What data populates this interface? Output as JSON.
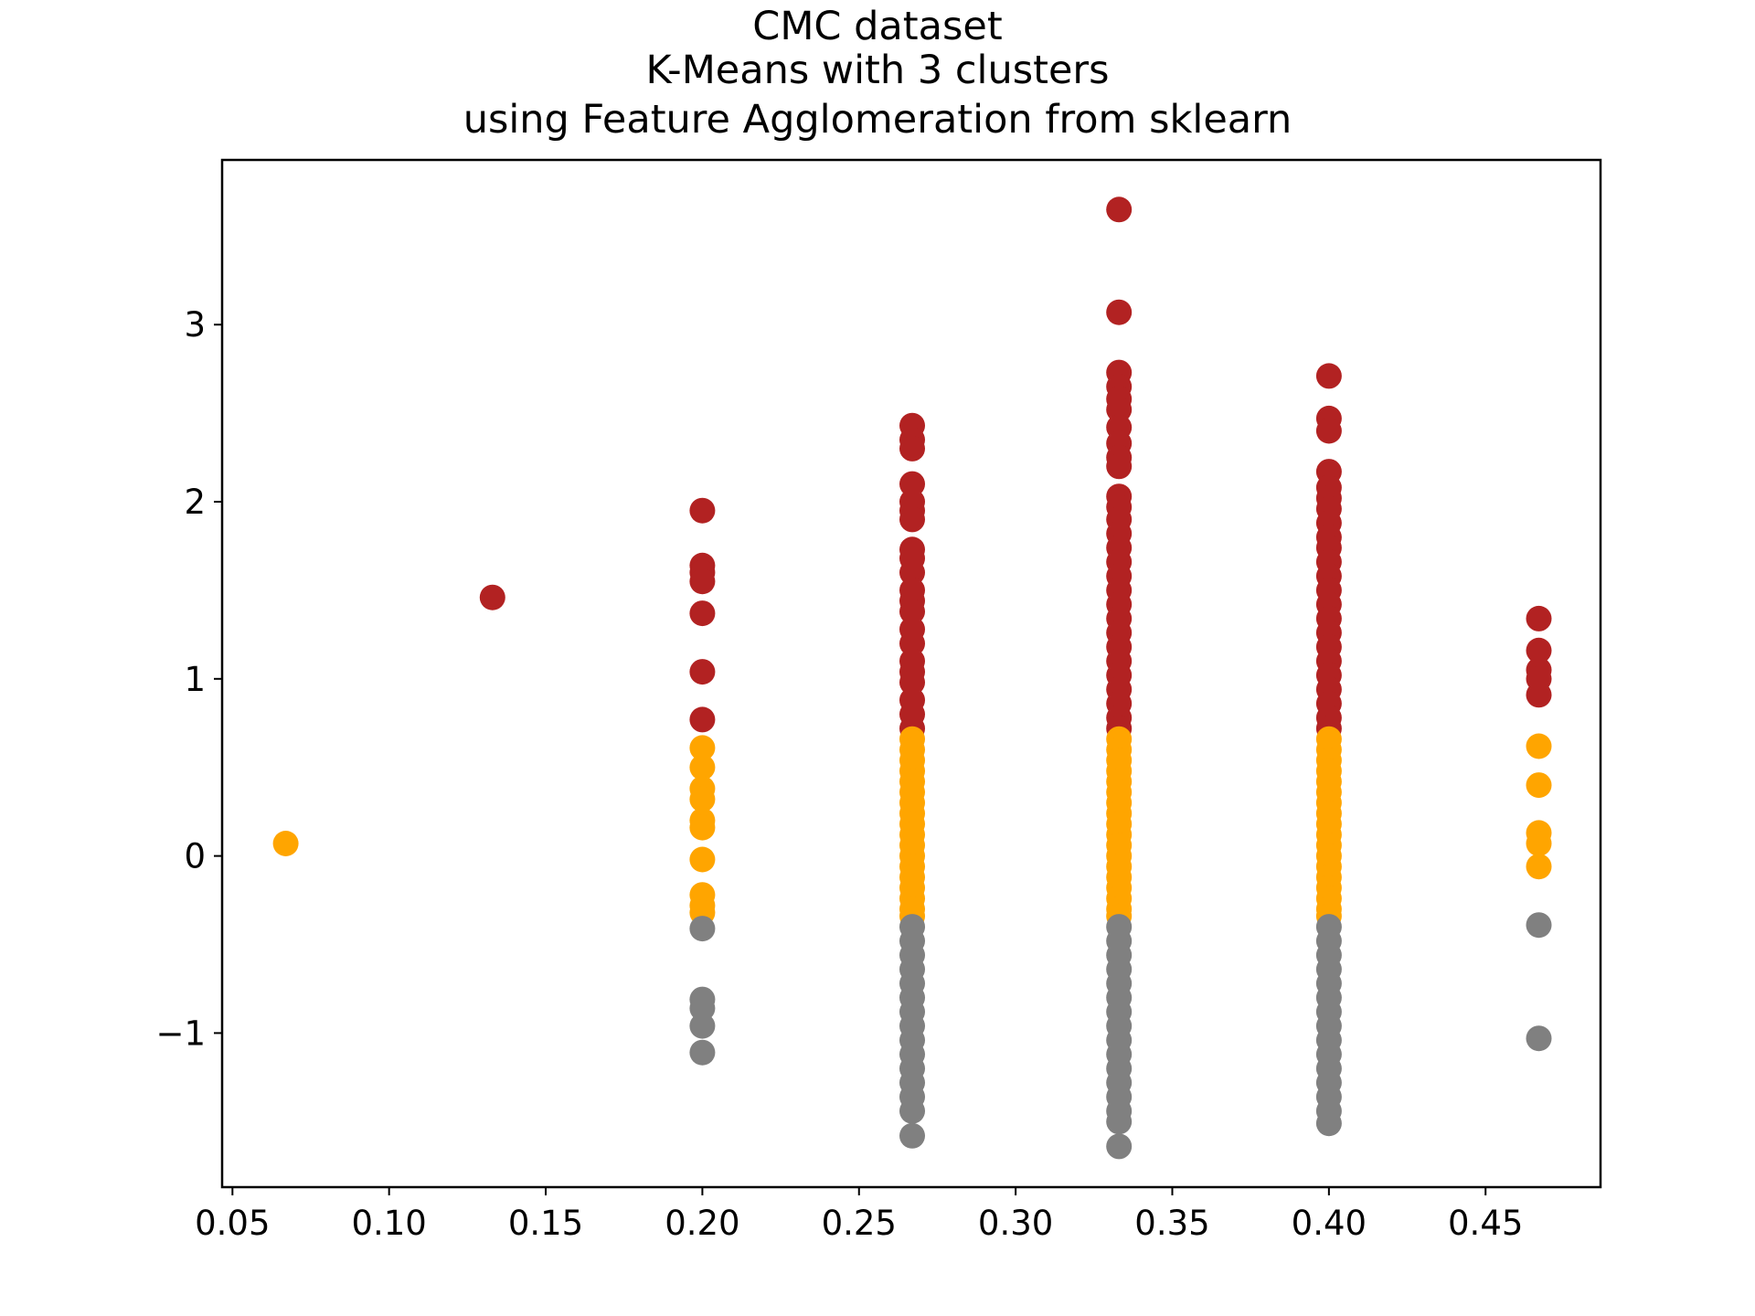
{
  "chart_data": {
    "type": "scatter",
    "title_lines": [
      "CMC dataset",
      "K-Means with 3 clusters",
      "using Feature Agglomeration from sklearn"
    ],
    "xlabel": "",
    "ylabel": "",
    "xlim": [
      0.0467,
      0.4867
    ],
    "ylim": [
      -1.87,
      3.93
    ],
    "x_ticks": [
      0.05,
      0.1,
      0.15,
      0.2,
      0.25,
      0.3,
      0.35,
      0.4,
      0.45
    ],
    "x_tick_labels": [
      "0.05",
      "0.10",
      "0.15",
      "0.20",
      "0.25",
      "0.30",
      "0.35",
      "0.40",
      "0.45"
    ],
    "y_ticks": [
      -1,
      0,
      1,
      2,
      3
    ],
    "y_tick_labels": [
      "−1",
      "0",
      "1",
      "2",
      "3"
    ],
    "grid": false,
    "colors": {
      "cluster_high": "#b22222",
      "cluster_mid": "#ffa500",
      "cluster_low": "#808080"
    },
    "series": [
      {
        "color": "#b22222",
        "points": [
          [
            0.133,
            1.46
          ],
          [
            0.2,
            1.95
          ],
          [
            0.2,
            1.64
          ],
          [
            0.2,
            1.6
          ],
          [
            0.2,
            1.55
          ],
          [
            0.2,
            1.37
          ],
          [
            0.2,
            1.04
          ],
          [
            0.2,
            0.77
          ],
          [
            0.267,
            2.43
          ],
          [
            0.267,
            2.35
          ],
          [
            0.267,
            2.3
          ],
          [
            0.267,
            2.1
          ],
          [
            0.267,
            2.0
          ],
          [
            0.267,
            1.95
          ],
          [
            0.267,
            1.9
          ],
          [
            0.267,
            1.73
          ],
          [
            0.267,
            1.68
          ],
          [
            0.267,
            1.6
          ],
          [
            0.267,
            1.5
          ],
          [
            0.267,
            1.44
          ],
          [
            0.267,
            1.38
          ],
          [
            0.267,
            1.28
          ],
          [
            0.267,
            1.2
          ],
          [
            0.267,
            1.1
          ],
          [
            0.267,
            1.04
          ],
          [
            0.267,
            0.98
          ],
          [
            0.267,
            0.88
          ],
          [
            0.267,
            0.8
          ],
          [
            0.267,
            0.72
          ],
          [
            0.333,
            3.65
          ],
          [
            0.333,
            3.07
          ],
          [
            0.333,
            2.73
          ],
          [
            0.333,
            2.65
          ],
          [
            0.333,
            2.58
          ],
          [
            0.333,
            2.52
          ],
          [
            0.333,
            2.42
          ],
          [
            0.333,
            2.33
          ],
          [
            0.333,
            2.25
          ],
          [
            0.333,
            2.2
          ],
          [
            0.333,
            2.03
          ],
          [
            0.333,
            1.97
          ],
          [
            0.333,
            1.9
          ],
          [
            0.333,
            1.82
          ],
          [
            0.333,
            1.74
          ],
          [
            0.333,
            1.66
          ],
          [
            0.333,
            1.58
          ],
          [
            0.333,
            1.5
          ],
          [
            0.333,
            1.42
          ],
          [
            0.333,
            1.34
          ],
          [
            0.333,
            1.26
          ],
          [
            0.333,
            1.18
          ],
          [
            0.333,
            1.1
          ],
          [
            0.333,
            1.02
          ],
          [
            0.333,
            0.94
          ],
          [
            0.333,
            0.86
          ],
          [
            0.333,
            0.78
          ],
          [
            0.333,
            0.72
          ],
          [
            0.4,
            2.71
          ],
          [
            0.4,
            2.47
          ],
          [
            0.4,
            2.4
          ],
          [
            0.4,
            2.17
          ],
          [
            0.4,
            2.08
          ],
          [
            0.4,
            2.02
          ],
          [
            0.4,
            1.96
          ],
          [
            0.4,
            1.88
          ],
          [
            0.4,
            1.8
          ],
          [
            0.4,
            1.74
          ],
          [
            0.4,
            1.66
          ],
          [
            0.4,
            1.58
          ],
          [
            0.4,
            1.5
          ],
          [
            0.4,
            1.42
          ],
          [
            0.4,
            1.34
          ],
          [
            0.4,
            1.26
          ],
          [
            0.4,
            1.18
          ],
          [
            0.4,
            1.1
          ],
          [
            0.4,
            1.02
          ],
          [
            0.4,
            0.94
          ],
          [
            0.4,
            0.86
          ],
          [
            0.4,
            0.78
          ],
          [
            0.4,
            0.72
          ],
          [
            0.467,
            1.34
          ],
          [
            0.467,
            1.16
          ],
          [
            0.467,
            1.05
          ],
          [
            0.467,
            1.0
          ],
          [
            0.467,
            0.91
          ]
        ]
      },
      {
        "color": "#ffa500",
        "points": [
          [
            0.067,
            0.07
          ],
          [
            0.2,
            0.61
          ],
          [
            0.2,
            0.5
          ],
          [
            0.2,
            0.38
          ],
          [
            0.2,
            0.32
          ],
          [
            0.2,
            0.2
          ],
          [
            0.2,
            0.16
          ],
          [
            0.2,
            -0.02
          ],
          [
            0.2,
            -0.22
          ],
          [
            0.2,
            -0.28
          ],
          [
            0.2,
            -0.32
          ],
          [
            0.267,
            0.66
          ],
          [
            0.267,
            0.6
          ],
          [
            0.267,
            0.54
          ],
          [
            0.267,
            0.48
          ],
          [
            0.267,
            0.42
          ],
          [
            0.267,
            0.36
          ],
          [
            0.267,
            0.3
          ],
          [
            0.267,
            0.24
          ],
          [
            0.267,
            0.18
          ],
          [
            0.267,
            0.12
          ],
          [
            0.267,
            0.06
          ],
          [
            0.267,
            0.0
          ],
          [
            0.267,
            -0.06
          ],
          [
            0.267,
            -0.12
          ],
          [
            0.267,
            -0.18
          ],
          [
            0.267,
            -0.24
          ],
          [
            0.267,
            -0.3
          ],
          [
            0.267,
            -0.34
          ],
          [
            0.333,
            0.66
          ],
          [
            0.333,
            0.6
          ],
          [
            0.333,
            0.54
          ],
          [
            0.333,
            0.48
          ],
          [
            0.333,
            0.42
          ],
          [
            0.333,
            0.36
          ],
          [
            0.333,
            0.3
          ],
          [
            0.333,
            0.24
          ],
          [
            0.333,
            0.18
          ],
          [
            0.333,
            0.12
          ],
          [
            0.333,
            0.06
          ],
          [
            0.333,
            0.0
          ],
          [
            0.333,
            -0.06
          ],
          [
            0.333,
            -0.12
          ],
          [
            0.333,
            -0.18
          ],
          [
            0.333,
            -0.24
          ],
          [
            0.333,
            -0.3
          ],
          [
            0.333,
            -0.34
          ],
          [
            0.4,
            0.66
          ],
          [
            0.4,
            0.6
          ],
          [
            0.4,
            0.54
          ],
          [
            0.4,
            0.48
          ],
          [
            0.4,
            0.42
          ],
          [
            0.4,
            0.36
          ],
          [
            0.4,
            0.3
          ],
          [
            0.4,
            0.24
          ],
          [
            0.4,
            0.18
          ],
          [
            0.4,
            0.12
          ],
          [
            0.4,
            0.06
          ],
          [
            0.4,
            0.0
          ],
          [
            0.4,
            -0.06
          ],
          [
            0.4,
            -0.12
          ],
          [
            0.4,
            -0.18
          ],
          [
            0.4,
            -0.24
          ],
          [
            0.4,
            -0.3
          ],
          [
            0.4,
            -0.34
          ],
          [
            0.467,
            0.62
          ],
          [
            0.467,
            0.4
          ],
          [
            0.467,
            0.13
          ],
          [
            0.467,
            0.07
          ],
          [
            0.467,
            -0.06
          ]
        ]
      },
      {
        "color": "#808080",
        "points": [
          [
            0.2,
            -0.41
          ],
          [
            0.2,
            -0.81
          ],
          [
            0.2,
            -0.86
          ],
          [
            0.2,
            -0.96
          ],
          [
            0.2,
            -1.11
          ],
          [
            0.267,
            -0.4
          ],
          [
            0.267,
            -0.48
          ],
          [
            0.267,
            -0.56
          ],
          [
            0.267,
            -0.64
          ],
          [
            0.267,
            -0.72
          ],
          [
            0.267,
            -0.8
          ],
          [
            0.267,
            -0.88
          ],
          [
            0.267,
            -0.96
          ],
          [
            0.267,
            -1.04
          ],
          [
            0.267,
            -1.12
          ],
          [
            0.267,
            -1.2
          ],
          [
            0.267,
            -1.28
          ],
          [
            0.267,
            -1.36
          ],
          [
            0.267,
            -1.44
          ],
          [
            0.267,
            -1.58
          ],
          [
            0.333,
            -0.4
          ],
          [
            0.333,
            -0.48
          ],
          [
            0.333,
            -0.56
          ],
          [
            0.333,
            -0.64
          ],
          [
            0.333,
            -0.72
          ],
          [
            0.333,
            -0.8
          ],
          [
            0.333,
            -0.88
          ],
          [
            0.333,
            -0.96
          ],
          [
            0.333,
            -1.04
          ],
          [
            0.333,
            -1.12
          ],
          [
            0.333,
            -1.2
          ],
          [
            0.333,
            -1.28
          ],
          [
            0.333,
            -1.36
          ],
          [
            0.333,
            -1.44
          ],
          [
            0.333,
            -1.5
          ],
          [
            0.333,
            -1.64
          ],
          [
            0.4,
            -0.4
          ],
          [
            0.4,
            -0.48
          ],
          [
            0.4,
            -0.56
          ],
          [
            0.4,
            -0.64
          ],
          [
            0.4,
            -0.72
          ],
          [
            0.4,
            -0.8
          ],
          [
            0.4,
            -0.88
          ],
          [
            0.4,
            -0.96
          ],
          [
            0.4,
            -1.04
          ],
          [
            0.4,
            -1.12
          ],
          [
            0.4,
            -1.2
          ],
          [
            0.4,
            -1.28
          ],
          [
            0.4,
            -1.36
          ],
          [
            0.4,
            -1.44
          ],
          [
            0.4,
            -1.51
          ],
          [
            0.467,
            -0.39
          ],
          [
            0.467,
            -1.03
          ]
        ]
      }
    ]
  }
}
